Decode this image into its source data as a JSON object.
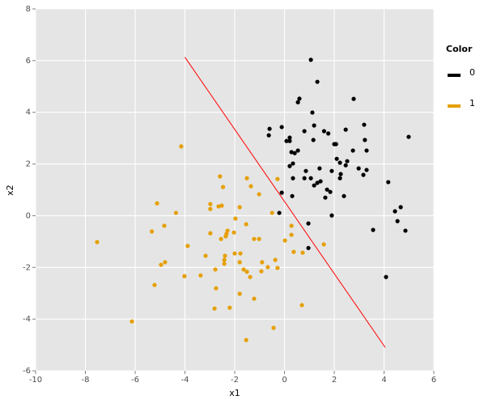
{
  "chart_data": {
    "type": "scatter",
    "xlabel": "x1",
    "ylabel": "x2",
    "legend_title": "Color",
    "legend_position": "right",
    "grid": true,
    "xlim": [
      -10,
      6
    ],
    "ylim": [
      -6,
      8
    ],
    "xticks": [
      -10,
      -8,
      -6,
      -4,
      -2,
      0,
      2,
      4,
      6
    ],
    "yticks": [
      -6,
      -4,
      -2,
      0,
      2,
      4,
      6,
      8
    ],
    "series": [
      {
        "name": "0",
        "color": "#000000",
        "x": [
          1.06,
          1.32,
          0.6,
          0.54,
          2.78,
          1.12,
          3.2,
          -0.6,
          -0.11,
          1.19,
          2.46,
          1.59,
          1.76,
          0.8,
          -0.63,
          0.21,
          3.23,
          1.16,
          0.08,
          0.21,
          4.99,
          2.0,
          2.07,
          0.54,
          0.28,
          0.41,
          2.75,
          3.3,
          2.1,
          2.52,
          2.23,
          2.46,
          0.34,
          0.21,
          2.98,
          1.41,
          3.3,
          0.86,
          1.9,
          2.26,
          3.17,
          0.34,
          0.8,
          1.06,
          2.23,
          4.17,
          1.45,
          1.19,
          1.32,
          1.71,
          -0.11,
          1.84,
          0.31,
          2.39,
          1.64,
          4.67,
          4.44,
          -0.21,
          1.9,
          0.96,
          4.54,
          3.56,
          4.86,
          0.96,
          4.08
        ],
        "y": [
          6.03,
          5.18,
          4.53,
          4.39,
          4.52,
          3.99,
          3.52,
          3.36,
          3.43,
          3.49,
          3.33,
          3.27,
          3.18,
          3.27,
          3.11,
          3.02,
          2.93,
          2.93,
          2.89,
          2.89,
          3.05,
          2.77,
          2.77,
          2.52,
          2.46,
          2.42,
          2.52,
          2.52,
          2.2,
          2.11,
          2.05,
          1.95,
          2.02,
          1.92,
          1.83,
          1.83,
          1.77,
          1.73,
          1.73,
          1.61,
          1.58,
          1.45,
          1.45,
          1.45,
          1.45,
          1.3,
          1.33,
          1.17,
          1.27,
          1.01,
          0.89,
          0.92,
          0.76,
          0.76,
          0.7,
          0.33,
          0.17,
          0.11,
          0.01,
          -0.3,
          -0.21,
          -0.55,
          -0.58,
          -1.25,
          -2.37
        ]
      },
      {
        "name": "1",
        "color": "#e69f00",
        "x": [
          -4.15,
          -2.59,
          -1.51,
          -2.47,
          -0.28,
          -1.35,
          -1.02,
          -2.98,
          -5.12,
          -2.98,
          -2.65,
          -2.52,
          -4.36,
          -0.5,
          -1.8,
          -1.97,
          -4.83,
          -1.54,
          0.28,
          -2.29,
          -5.33,
          -2.33,
          -2.98,
          -2.03,
          0.28,
          -2.36,
          -2.55,
          -1.22,
          -1.02,
          -7.53,
          -3.89,
          1.58,
          0.02,
          -2.0,
          -1.77,
          0.37,
          0.73,
          -2.39,
          -3.17,
          -2.42,
          -0.37,
          -4.8,
          -1.8,
          -2.42,
          -4.96,
          -0.9,
          -0.67,
          -1.64,
          -2.78,
          -0.93,
          -0.28,
          -1.51,
          -1.38,
          -3.37,
          -4.02,
          -5.22,
          -2.75,
          -1.8,
          -1.22,
          0.7,
          -2.2,
          -2.81,
          -0.44,
          -6.13,
          -1.54
        ],
        "y": [
          2.68,
          1.52,
          1.45,
          1.11,
          1.42,
          1.14,
          0.83,
          0.45,
          0.48,
          0.26,
          0.36,
          0.39,
          0.11,
          0.11,
          0.33,
          -0.11,
          -0.39,
          -0.33,
          -0.39,
          -0.58,
          -0.61,
          -0.7,
          -0.68,
          -0.65,
          -0.74,
          -0.8,
          -0.9,
          -0.9,
          -0.9,
          -1.02,
          -1.17,
          -1.11,
          -0.96,
          -1.46,
          -1.46,
          -1.4,
          -1.43,
          -1.55,
          -1.55,
          -1.71,
          -1.71,
          -1.8,
          -1.8,
          -1.86,
          -1.9,
          -1.8,
          -1.99,
          -2.08,
          -2.08,
          -2.15,
          -2.02,
          -2.17,
          -2.37,
          -2.31,
          -2.34,
          -2.68,
          -2.81,
          -3.02,
          -3.21,
          -3.46,
          -3.56,
          -3.59,
          -4.34,
          -4.09,
          -4.81
        ]
      }
    ],
    "line": {
      "color": "#ff0000",
      "x": [
        -4,
        4.05
      ],
      "y": [
        6.13,
        -5.1
      ]
    }
  }
}
